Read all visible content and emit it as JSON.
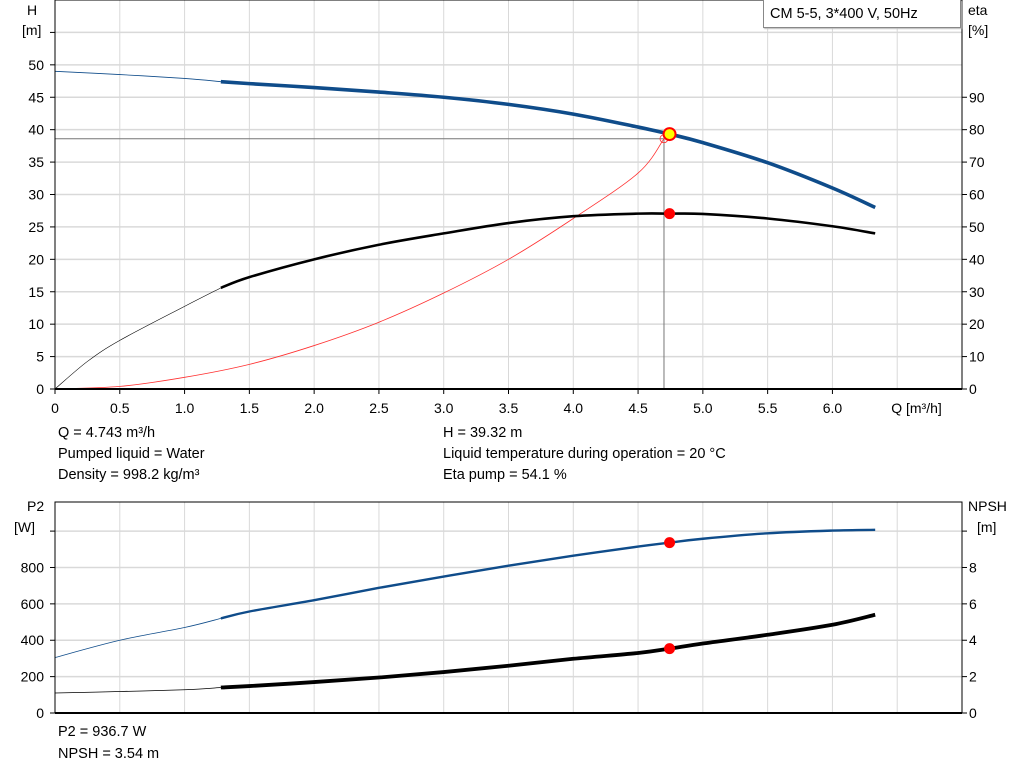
{
  "legend": {
    "label": "CM 5-5, 3*400 V, 50Hz"
  },
  "chart_data": [
    {
      "type": "line",
      "xlabel": "Q [m³/h]",
      "ylabel_left": [
        "H",
        "[m]"
      ],
      "ylabel_right": [
        "eta",
        "[%]"
      ],
      "xlim": [
        0,
        7.0
      ],
      "ylim_left": [
        0,
        60
      ],
      "ylim_right": [
        0,
        120
      ],
      "x_ticks": [
        "0",
        "0.5",
        "1.0",
        "1.5",
        "2.0",
        "2.5",
        "3.0",
        "3.5",
        "4.0",
        "4.5",
        "5.0",
        "5.5",
        "6.0"
      ],
      "y_ticks_left": [
        "0",
        "5",
        "10",
        "15",
        "20",
        "25",
        "30",
        "35",
        "40",
        "45",
        "50"
      ],
      "y_ticks_right": [
        "0",
        "10",
        "20",
        "30",
        "40",
        "50",
        "60",
        "70",
        "80",
        "90"
      ],
      "grid": true,
      "colors": {
        "head": "#0f4c8a",
        "eta": "#000000",
        "system": "#ff3030",
        "grid": "#d9d9d9",
        "ref": "#777777",
        "marker": "#ff0000",
        "marker_op": "#ffff00"
      },
      "series": [
        {
          "key": "head",
          "axis": "left",
          "min_recommended_q": 1.28,
          "x": [
            0,
            0.5,
            1.0,
            1.28,
            1.5,
            2.0,
            2.5,
            3.0,
            3.5,
            4.0,
            4.5,
            4.743,
            5.0,
            5.5,
            6.0,
            6.33
          ],
          "y": [
            49.0,
            48.5,
            47.9,
            47.4,
            47.1,
            46.5,
            45.8,
            45.0,
            43.9,
            42.4,
            40.4,
            39.32,
            38.0,
            34.9,
            31.0,
            28.0
          ]
        },
        {
          "key": "eta",
          "axis": "right",
          "min_recommended_q": 1.28,
          "x": [
            0,
            0.25,
            0.5,
            1.0,
            1.28,
            1.5,
            2.0,
            2.5,
            3.0,
            3.5,
            4.0,
            4.5,
            4.743,
            5.0,
            5.5,
            6.0,
            6.33
          ],
          "y": [
            0,
            8.5,
            15.0,
            25.5,
            31.2,
            34.5,
            40.0,
            44.5,
            48.0,
            51.2,
            53.3,
            54.1,
            54.1,
            54.0,
            52.6,
            50.2,
            48.0
          ]
        },
        {
          "key": "system",
          "axis": "left",
          "x": [
            0,
            0.5,
            1.0,
            1.5,
            2.0,
            2.5,
            3.0,
            3.5,
            4.0,
            4.5,
            4.7
          ],
          "y": [
            0,
            0.4,
            1.8,
            3.8,
            6.7,
            10.3,
            14.8,
            20.0,
            26.3,
            33.3,
            38.6
          ]
        }
      ],
      "operating_point": {
        "q": 4.743,
        "h": 39.32,
        "eta": 54.1,
        "ref_q": 4.7,
        "ref_h": 38.6
      }
    },
    {
      "type": "line",
      "ylabel_left": [
        "P2",
        "[W]"
      ],
      "ylabel_right": [
        "NPSH",
        "[m]"
      ],
      "xlim": [
        0,
        7.0
      ],
      "ylim_left": [
        0,
        1160
      ],
      "ylim_right": [
        0,
        11.6
      ],
      "y_ticks_left": [
        "0",
        "200",
        "400",
        "600",
        "800"
      ],
      "y_ticks_right": [
        "0",
        "2",
        "4",
        "6",
        "8"
      ],
      "grid": true,
      "colors": {
        "p2": "#0f4c8a",
        "npsh": "#000000",
        "marker": "#ff0000"
      },
      "series": [
        {
          "key": "p2",
          "axis": "left",
          "min_recommended_q": 1.28,
          "x": [
            0,
            0.5,
            1.0,
            1.28,
            1.5,
            2.0,
            2.5,
            3.0,
            3.5,
            4.0,
            4.5,
            4.743,
            5.0,
            5.5,
            6.0,
            6.33
          ],
          "y": [
            305,
            400,
            470,
            520,
            558,
            620,
            688,
            750,
            810,
            865,
            915,
            936.7,
            958,
            988,
            1003,
            1007
          ]
        },
        {
          "key": "npsh",
          "axis": "right",
          "min_recommended_q": 1.28,
          "x": [
            0,
            0.5,
            1.0,
            1.28,
            1.5,
            2.0,
            2.5,
            3.0,
            3.5,
            4.0,
            4.5,
            4.743,
            5.0,
            5.5,
            6.0,
            6.33
          ],
          "y": [
            1.1,
            1.18,
            1.28,
            1.4,
            1.48,
            1.7,
            1.95,
            2.25,
            2.6,
            2.98,
            3.3,
            3.54,
            3.82,
            4.3,
            4.85,
            5.4
          ]
        }
      ],
      "operating_point": {
        "q": 4.743,
        "p2": 936.7,
        "npsh": 3.54
      }
    }
  ],
  "info_top": {
    "q": "Q = 4.743 m³/h",
    "liquid": "Pumped liquid = Water",
    "density": "Density = 998.2 kg/m³",
    "h": "H = 39.32 m",
    "temp": "Liquid temperature during operation = 20 °C",
    "eta": "Eta pump = 54.1 %"
  },
  "info_bottom": {
    "p2": "P2 = 936.7 W",
    "npsh": "NPSH = 3.54 m"
  }
}
